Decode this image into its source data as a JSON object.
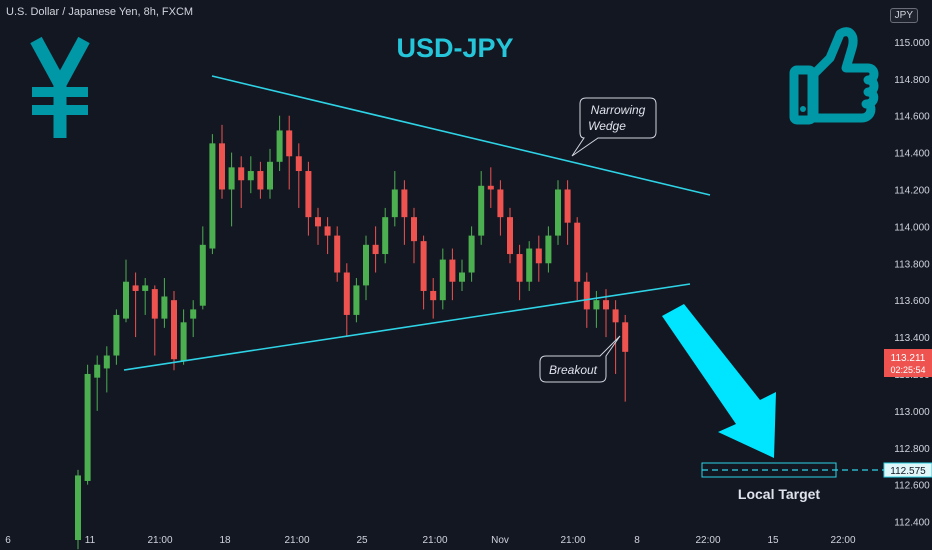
{
  "header": {
    "symbol_desc": "U.S. Dollar / Japanese Yen, 8h, FXCM",
    "currency": "JPY"
  },
  "colors": {
    "background": "#131722",
    "up": "#26a69a",
    "up_body": "#4caf50",
    "down": "#ef5350",
    "trendline": "#2ed3e6",
    "accent": "#00bcd4",
    "title": "#26c6da"
  },
  "chart_data": {
    "type": "candlestick",
    "title": "USD-JPY",
    "ylim": [
      112.3,
      115.2
    ],
    "yticks": [
      112.4,
      112.6,
      112.8,
      113.0,
      113.2,
      113.4,
      113.6,
      113.8,
      114.0,
      114.2,
      114.4,
      114.6,
      114.8,
      115.0
    ],
    "ytick_labels": [
      "112.400",
      "112.600",
      "112.800",
      "113.000",
      "113.200",
      "113.400",
      "113.600",
      "113.800",
      "114.000",
      "114.200",
      "114.400",
      "114.600",
      "114.800",
      "115.000"
    ],
    "xticks": [
      "6",
      "11",
      "21:00",
      "18",
      "21:00",
      "25",
      "21:00",
      "Nov",
      "21:00",
      "8",
      "22:00",
      "15",
      "22:00"
    ],
    "current_price": "113.211",
    "countdown": "02:25:54",
    "target_price": "112.575",
    "candles": [
      [
        112.3,
        112.65,
        112.25,
        112.68
      ],
      [
        112.62,
        113.2,
        112.6,
        113.25
      ],
      [
        113.18,
        113.25,
        113.0,
        113.3
      ],
      [
        113.23,
        113.3,
        113.1,
        113.35
      ],
      [
        113.3,
        113.52,
        113.25,
        113.55
      ],
      [
        113.5,
        113.7,
        113.48,
        113.82
      ],
      [
        113.68,
        113.65,
        113.4,
        113.75
      ],
      [
        113.65,
        113.68,
        113.52,
        113.72
      ],
      [
        113.66,
        113.5,
        113.3,
        113.68
      ],
      [
        113.5,
        113.62,
        113.45,
        113.72
      ],
      [
        113.6,
        113.28,
        113.22,
        113.65
      ],
      [
        113.27,
        113.48,
        113.25,
        113.55
      ],
      [
        113.5,
        113.55,
        113.4,
        113.6
      ],
      [
        113.57,
        113.9,
        113.55,
        114.0
      ],
      [
        113.88,
        114.45,
        113.85,
        114.5
      ],
      [
        114.45,
        114.2,
        114.15,
        114.55
      ],
      [
        114.2,
        114.32,
        114.0,
        114.4
      ],
      [
        114.32,
        114.25,
        114.1,
        114.38
      ],
      [
        114.25,
        114.3,
        114.18,
        114.38
      ],
      [
        114.3,
        114.2,
        114.15,
        114.35
      ],
      [
        114.2,
        114.35,
        114.15,
        114.42
      ],
      [
        114.35,
        114.52,
        114.3,
        114.6
      ],
      [
        114.52,
        114.38,
        114.2,
        114.6
      ],
      [
        114.38,
        114.3,
        114.1,
        114.45
      ],
      [
        114.3,
        114.05,
        113.95,
        114.35
      ],
      [
        114.05,
        114.0,
        113.9,
        114.1
      ],
      [
        114.0,
        113.95,
        113.85,
        114.05
      ],
      [
        113.95,
        113.75,
        113.7,
        114.0
      ],
      [
        113.75,
        113.52,
        113.4,
        113.8
      ],
      [
        113.52,
        113.68,
        113.48,
        113.72
      ],
      [
        113.68,
        113.9,
        113.6,
        113.95
      ],
      [
        113.9,
        113.85,
        113.75,
        114.0
      ],
      [
        113.85,
        114.05,
        113.8,
        114.1
      ],
      [
        114.05,
        114.2,
        114.0,
        114.3
      ],
      [
        114.2,
        114.05,
        113.9,
        114.25
      ],
      [
        114.05,
        113.92,
        113.8,
        114.1
      ],
      [
        113.92,
        113.65,
        113.55,
        113.95
      ],
      [
        113.65,
        113.6,
        113.5,
        113.72
      ],
      [
        113.6,
        113.82,
        113.55,
        113.88
      ],
      [
        113.82,
        113.7,
        113.6,
        113.88
      ],
      [
        113.7,
        113.75,
        113.65,
        113.82
      ],
      [
        113.75,
        113.95,
        113.7,
        114.0
      ],
      [
        113.95,
        114.22,
        113.9,
        114.3
      ],
      [
        114.22,
        114.2,
        114.1,
        114.32
      ],
      [
        114.2,
        114.05,
        113.95,
        114.25
      ],
      [
        114.05,
        113.85,
        113.8,
        114.1
      ],
      [
        113.85,
        113.7,
        113.6,
        113.9
      ],
      [
        113.7,
        113.88,
        113.65,
        113.92
      ],
      [
        113.88,
        113.8,
        113.7,
        113.95
      ],
      [
        113.8,
        113.95,
        113.75,
        114.0
      ],
      [
        113.95,
        114.2,
        113.9,
        114.25
      ],
      [
        114.2,
        114.02,
        113.9,
        114.25
      ],
      [
        114.02,
        113.7,
        113.6,
        114.05
      ],
      [
        113.7,
        113.55,
        113.45,
        113.75
      ],
      [
        113.55,
        113.6,
        113.45,
        113.65
      ],
      [
        113.6,
        113.55,
        113.4,
        113.66
      ],
      [
        113.55,
        113.48,
        113.2,
        113.6
      ],
      [
        113.48,
        113.32,
        113.05,
        113.52
      ]
    ],
    "annotations": {
      "pattern_line1": "Narrowing",
      "pattern_line2": "Wedge",
      "breakout": "Breakout",
      "target_label": "Local Target"
    }
  }
}
